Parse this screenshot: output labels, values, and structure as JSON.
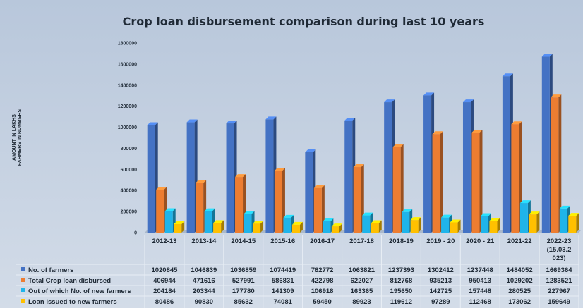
{
  "chart_data": {
    "type": "bar",
    "title": "Crop loan disbursement comparison during last 10 years",
    "ylabel_lines": [
      "AMOUNT IN LAKHS",
      "FARMERS IN NUMBERS"
    ],
    "ylim": [
      0,
      1800000
    ],
    "yticks": [
      0,
      200000,
      400000,
      600000,
      800000,
      1000000,
      1200000,
      1400000,
      1600000,
      1800000
    ],
    "grid": false,
    "legend": "data-table-bottom",
    "categories": [
      [
        "2012-13"
      ],
      [
        "2013-14"
      ],
      [
        "2014-15"
      ],
      [
        "2015-16"
      ],
      [
        "2016-17"
      ],
      [
        "2017-18"
      ],
      [
        "2018-19"
      ],
      [
        "2019 - 20"
      ],
      [
        "2020 - 21"
      ],
      [
        "2021-22"
      ],
      [
        "2022-23",
        "(15.03.2",
        "023)"
      ]
    ],
    "series": [
      {
        "name": "No. of farmers",
        "color": "#4472c4",
        "values": [
          1020845,
          1046839,
          1036859,
          1074419,
          762772,
          1063821,
          1237393,
          1302412,
          1237448,
          1484052,
          1669364
        ]
      },
      {
        "name": "Total Crop loan disbursed",
        "color": "#ed7d31",
        "values": [
          406944,
          471616,
          527991,
          586831,
          422798,
          622027,
          812768,
          935213,
          950413,
          1029202,
          1283521
        ]
      },
      {
        "name": "Out of which No. of new farmers",
        "color": "#1fb4ea",
        "values": [
          204184,
          203344,
          177780,
          141309,
          106918,
          163365,
          195650,
          142725,
          157448,
          280525,
          227967
        ]
      },
      {
        "name": "Loan issued to new farmers",
        "color": "#ffc000",
        "values": [
          80486,
          90830,
          85632,
          74081,
          59450,
          89923,
          119612,
          97289,
          112468,
          173062,
          159649
        ]
      }
    ]
  }
}
